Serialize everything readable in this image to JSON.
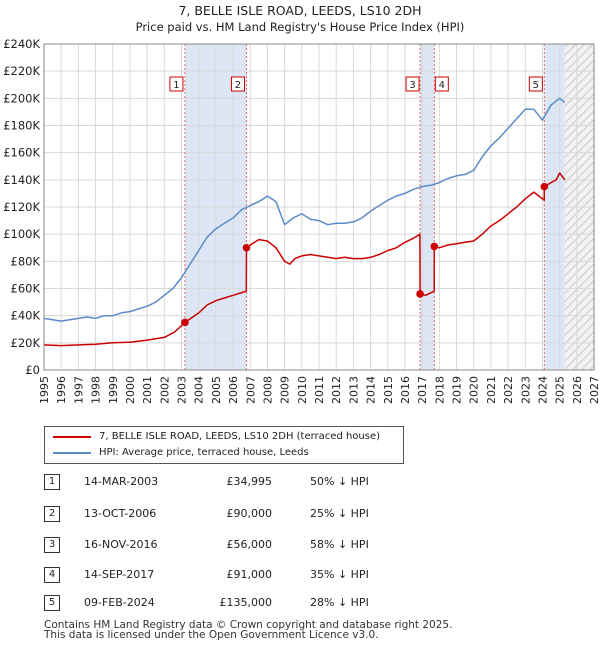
{
  "chart_data": {
    "type": "line",
    "title": "7, BELLE ISLE ROAD, LEEDS, LS10 2DH",
    "subtitle": "Price paid vs. HM Land Registry's House Price Index (HPI)",
    "xlim": [
      1995,
      2027
    ],
    "ylim": [
      0,
      240000
    ],
    "x_ticks": [
      "1995",
      "1996",
      "1997",
      "1998",
      "1999",
      "2000",
      "2001",
      "2002",
      "2003",
      "2004",
      "2005",
      "2006",
      "2007",
      "2008",
      "2009",
      "2010",
      "2011",
      "2012",
      "2013",
      "2014",
      "2015",
      "2016",
      "2017",
      "2018",
      "2019",
      "2020",
      "2021",
      "2022",
      "2023",
      "2024",
      "2025",
      "2026",
      "2027"
    ],
    "y_ticks": [
      {
        "value": 0,
        "label": "£0"
      },
      {
        "value": 20000,
        "label": "£20K"
      },
      {
        "value": 40000,
        "label": "£40K"
      },
      {
        "value": 60000,
        "label": "£60K"
      },
      {
        "value": 80000,
        "label": "£80K"
      },
      {
        "value": 100000,
        "label": "£100K"
      },
      {
        "value": 120000,
        "label": "£120K"
      },
      {
        "value": 140000,
        "label": "£140K"
      },
      {
        "value": 160000,
        "label": "£160K"
      },
      {
        "value": 180000,
        "label": "£180K"
      },
      {
        "value": 200000,
        "label": "£200K"
      },
      {
        "value": 220000,
        "label": "£220K"
      },
      {
        "value": 240000,
        "label": "£240K"
      }
    ],
    "grid": true,
    "forecast_from": 2025.3,
    "shaded_spans": [
      [
        2003.2,
        2006.78
      ],
      [
        2016.88,
        2017.71
      ],
      [
        2024.11,
        2025.3
      ]
    ],
    "colors": {
      "property": "#cc0000",
      "hpi": "#5b8cc8",
      "shade": "#dde6f5",
      "grid": "#d9d9d9",
      "marker_line": "#e06666"
    },
    "series": [
      {
        "name": "HPI: Average price, terraced house, Leeds",
        "x": [
          1995,
          1995.5,
          1996,
          1996.5,
          1997,
          1997.5,
          1998,
          1998.5,
          1999,
          1999.5,
          2000,
          2000.5,
          2001,
          2001.5,
          2002,
          2002.5,
          2003,
          2003.5,
          2004,
          2004.5,
          2005,
          2005.5,
          2006,
          2006.5,
          2007,
          2007.5,
          2008,
          2008.5,
          2009,
          2009.5,
          2010,
          2010.5,
          2011,
          2011.5,
          2012,
          2012.5,
          2013,
          2013.5,
          2014,
          2014.5,
          2015,
          2015.5,
          2016,
          2016.5,
          2017,
          2017.5,
          2018,
          2018.5,
          2019,
          2019.5,
          2020,
          2020.5,
          2021,
          2021.5,
          2022,
          2022.5,
          2023,
          2023.5,
          2024,
          2024.5,
          2025,
          2025.3
        ],
        "values": [
          38000,
          37000,
          36000,
          37000,
          38000,
          39000,
          38000,
          40000,
          40000,
          42000,
          43000,
          45000,
          47000,
          50000,
          55000,
          60000,
          68000,
          78000,
          88000,
          98000,
          104000,
          108000,
          112000,
          118000,
          121000,
          124000,
          128000,
          124000,
          107000,
          112000,
          115000,
          111000,
          110000,
          107000,
          108000,
          108000,
          109000,
          112000,
          117000,
          121000,
          125000,
          128000,
          130000,
          133000,
          135000,
          136000,
          138000,
          141000,
          143000,
          144000,
          147000,
          157000,
          165000,
          171000,
          178000,
          185000,
          192000,
          192000,
          184000,
          195000,
          200000,
          197000
        ]
      },
      {
        "name": "7, BELLE ISLE ROAD, LEEDS, LS10 2DH (terraced house)",
        "x": [
          1995,
          1996,
          1997,
          1998,
          1999,
          2000,
          2001,
          2002,
          2002.6,
          2003.2,
          2004,
          2004.5,
          2005,
          2005.5,
          2006,
          2006.5,
          2006.77,
          2006.78,
          2007,
          2007.5,
          2008,
          2008.5,
          2009,
          2009.3,
          2009.6,
          2010,
          2010.5,
          2011,
          2011.5,
          2012,
          2012.5,
          2013,
          2013.5,
          2014,
          2014.5,
          2015,
          2015.5,
          2016,
          2016.5,
          2016.87,
          2016.88,
          2017.2,
          2017.7,
          2017.71,
          2018,
          2018.5,
          2019,
          2019.5,
          2020,
          2020.5,
          2021,
          2021.5,
          2022,
          2022.5,
          2023,
          2023.5,
          2024.1,
          2024.11,
          2024.5,
          2024.8,
          2025,
          2025.3
        ],
        "values": [
          18500,
          18000,
          18500,
          19000,
          20000,
          20500,
          22000,
          24000,
          28000,
          34995,
          42000,
          48000,
          51000,
          53000,
          55000,
          57000,
          58000,
          90000,
          92000,
          96000,
          95000,
          90000,
          80000,
          78000,
          82000,
          84000,
          85000,
          84000,
          83000,
          82000,
          83000,
          82000,
          82000,
          83000,
          85000,
          88000,
          90000,
          94000,
          97000,
          100000,
          56000,
          55000,
          58000,
          91000,
          90000,
          92000,
          93000,
          94000,
          95000,
          100000,
          106000,
          110000,
          115000,
          120000,
          126000,
          131000,
          125000,
          135000,
          138000,
          140000,
          145000,
          140000
        ]
      }
    ],
    "sales": [
      {
        "label": "1",
        "x": 2003.2,
        "value": 34995
      },
      {
        "label": "2",
        "x": 2006.78,
        "value": 90000
      },
      {
        "label": "3",
        "x": 2016.88,
        "value": 56000
      },
      {
        "label": "4",
        "x": 2017.71,
        "value": 91000
      },
      {
        "label": "5",
        "x": 2024.11,
        "value": 135000
      }
    ]
  },
  "legend": {
    "property": "7, BELLE ISLE ROAD, LEEDS, LS10 2DH (terraced house)",
    "hpi": "HPI: Average price, terraced house, Leeds"
  },
  "table": [
    {
      "num": "1",
      "date": "14-MAR-2003",
      "price": "£34,995",
      "hpi": "50% ↓ HPI"
    },
    {
      "num": "2",
      "date": "13-OCT-2006",
      "price": "£90,000",
      "hpi": "25% ↓ HPI"
    },
    {
      "num": "3",
      "date": "16-NOV-2016",
      "price": "£56,000",
      "hpi": "58% ↓ HPI"
    },
    {
      "num": "4",
      "date": "14-SEP-2017",
      "price": "£91,000",
      "hpi": "35% ↓ HPI"
    },
    {
      "num": "5",
      "date": "09-FEB-2024",
      "price": "£135,000",
      "hpi": "28% ↓ HPI"
    }
  ],
  "footer": {
    "line1": "Contains HM Land Registry data © Crown copyright and database right 2025.",
    "line2": "This data is licensed under the Open Government Licence v3.0."
  }
}
